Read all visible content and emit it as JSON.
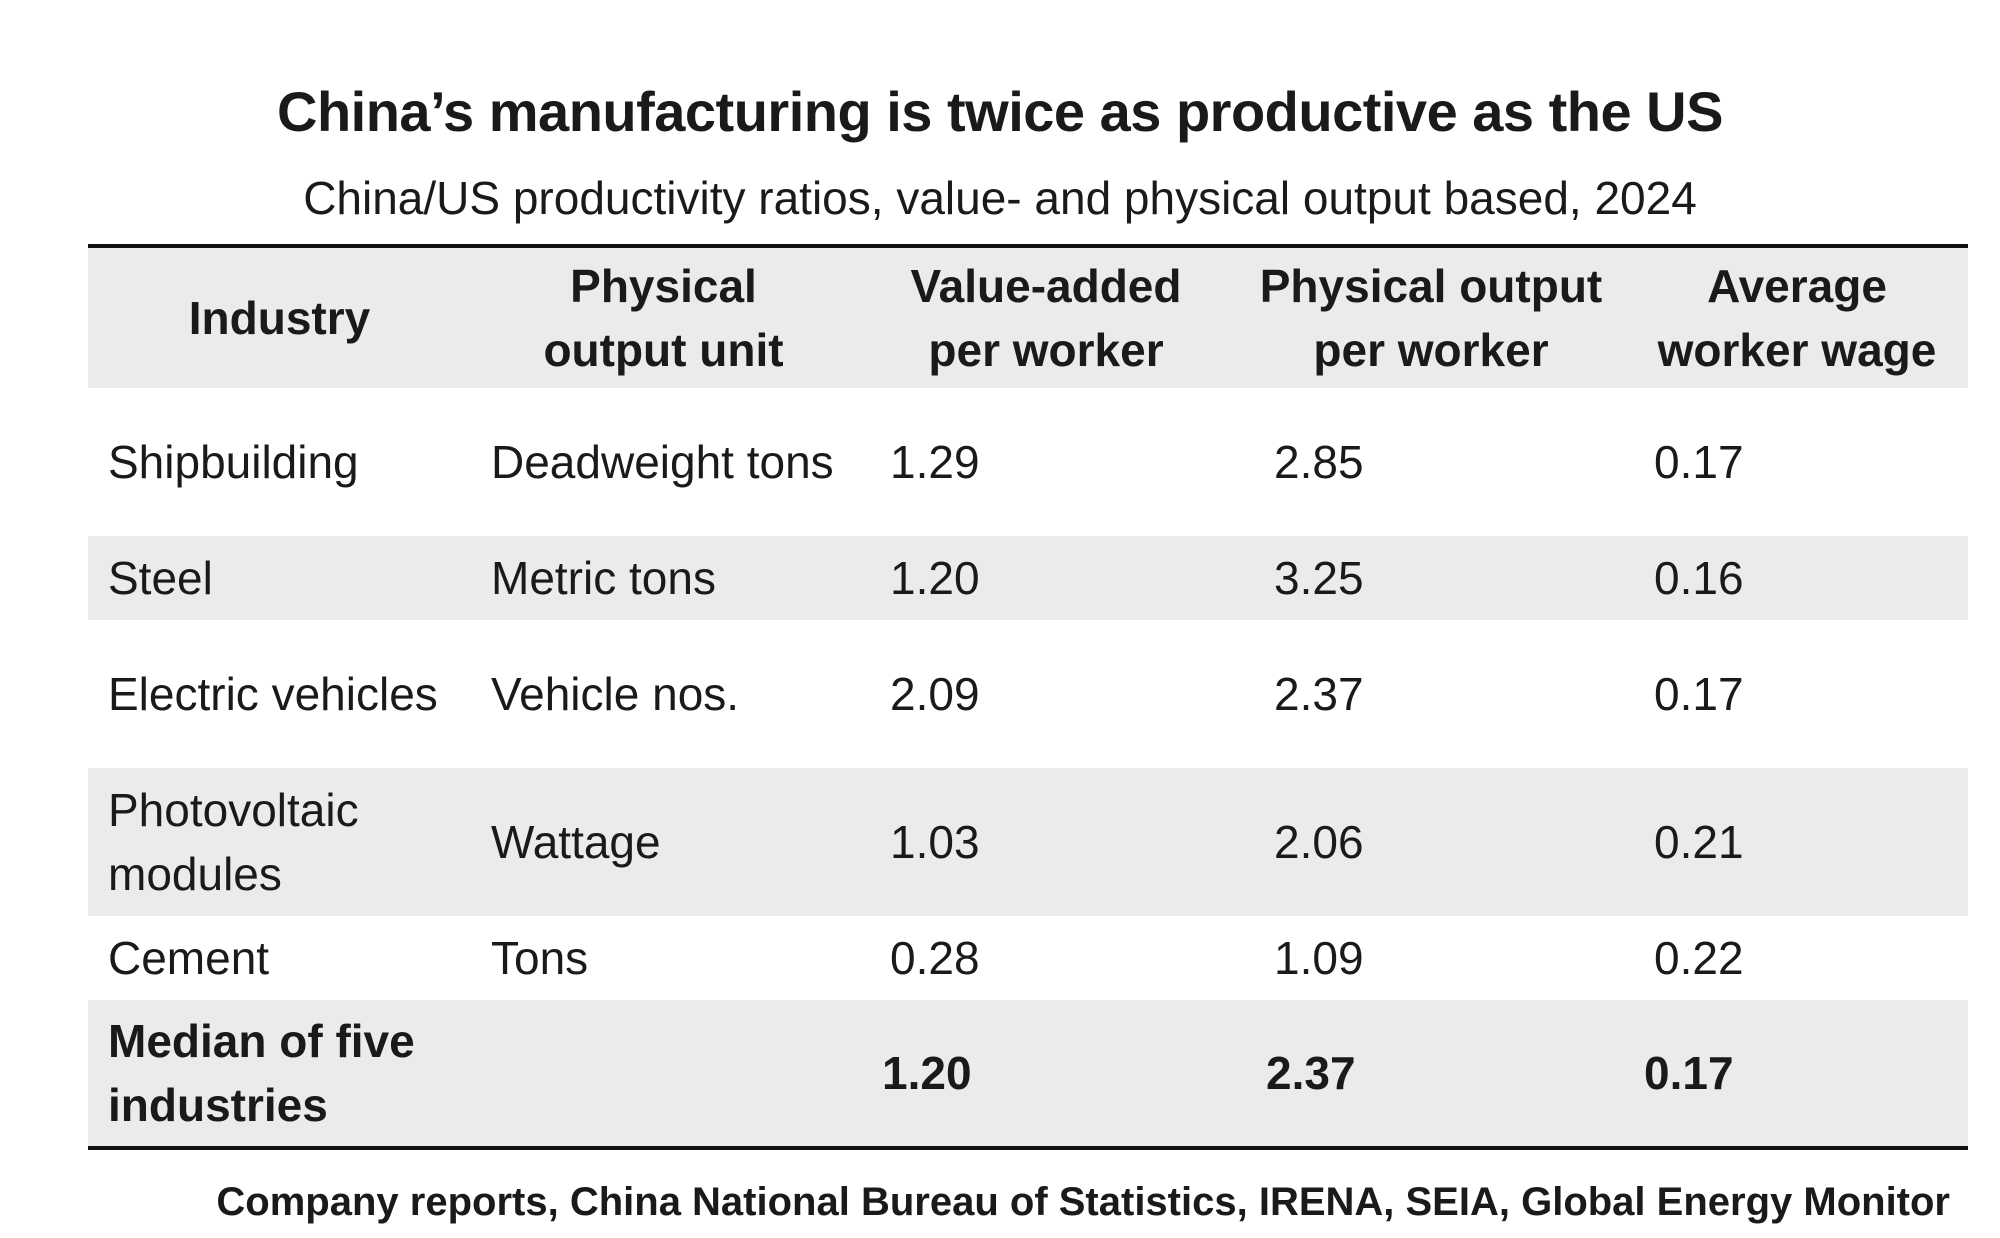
{
  "chart_data": {
    "type": "table",
    "title": "China’s manufacturing is twice as productive as the US",
    "subtitle": "China/US productivity ratios, value- and physical output based, 2024",
    "columns": [
      {
        "line1": "Industry",
        "line2": ""
      },
      {
        "line1": "Physical",
        "line2": "output unit"
      },
      {
        "line1": "Value-added",
        "line2": "per worker"
      },
      {
        "line1": "Physical output",
        "line2": "per worker"
      },
      {
        "line1": "Average",
        "line2": "worker wage"
      }
    ],
    "rows": [
      {
        "industry": "Shipbuilding",
        "unit": "Deadweight tons",
        "value_added_per_worker": "1.29",
        "physical_output_per_worker": "2.85",
        "average_worker_wage": "0.17"
      },
      {
        "industry": "Steel",
        "unit": "Metric tons",
        "value_added_per_worker": "1.20",
        "physical_output_per_worker": "3.25",
        "average_worker_wage": "0.16"
      },
      {
        "industry": "Electric vehicles",
        "unit": "Vehicle nos.",
        "value_added_per_worker": "2.09",
        "physical_output_per_worker": "2.37",
        "average_worker_wage": "0.17"
      },
      {
        "industry": "Photovoltaic modules",
        "unit": "Wattage",
        "value_added_per_worker": "1.03",
        "physical_output_per_worker": "2.06",
        "average_worker_wage": "0.21"
      },
      {
        "industry": "Cement",
        "unit": "Tons",
        "value_added_per_worker": "0.28",
        "physical_output_per_worker": "1.09",
        "average_worker_wage": "0.22"
      }
    ],
    "summary_row": {
      "industry": "Median of five industries",
      "unit": "",
      "value_added_per_worker": "1.20",
      "physical_output_per_worker": "2.37",
      "average_worker_wage": "0.17"
    },
    "source": "Company reports, China National Bureau of Statistics, IRENA, SEIA, Global Energy Monitor"
  },
  "colors": {
    "shade": "#ebebeb",
    "rule": "#111111",
    "text": "#1a1a1a"
  }
}
